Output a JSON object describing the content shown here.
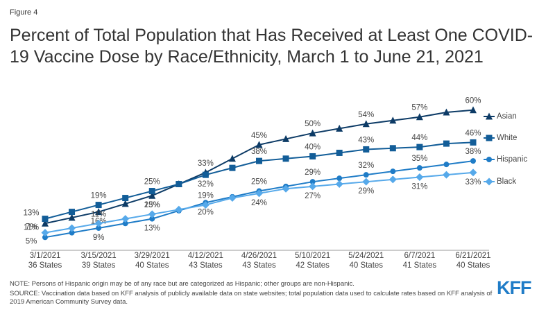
{
  "figure_label": "Figure 4",
  "chart_data": {
    "type": "line",
    "title": "Percent of Total Population that Has Received at Least One COVID-19 Vaccine Dose by Race/Ethnicity, March 1 to June 21, 2021",
    "categories": [
      "3/1/2021",
      null,
      "3/15/2021",
      null,
      "3/29/2021",
      null,
      "4/12/2021",
      null,
      "4/26/2021",
      null,
      "5/10/2021",
      null,
      "5/24/2021",
      null,
      "6/7/2021",
      null,
      "6/21/2021"
    ],
    "category_sublabels": [
      "36 States",
      null,
      "39 States",
      null,
      "40 States",
      null,
      "43 States",
      null,
      "43 States",
      null,
      "42 States",
      null,
      "40 States",
      null,
      "41 States",
      null,
      "40 States"
    ],
    "ylim": [
      0,
      65
    ],
    "series": [
      {
        "name": "Asian",
        "color": "#0d3b66",
        "marker": "triangle",
        "values": [
          11,
          13.5,
          16,
          19.5,
          23,
          28,
          33,
          39,
          45,
          47.5,
          50,
          52,
          54,
          55.5,
          57,
          59,
          60
        ],
        "value_labels": [
          "11%",
          null,
          "16%",
          null,
          "23%",
          null,
          "33%",
          null,
          "45%",
          null,
          "50%",
          null,
          "54%",
          null,
          "57%",
          null,
          "60%"
        ]
      },
      {
        "name": "White",
        "color": "#125d98",
        "marker": "square",
        "values": [
          13,
          16,
          19,
          22,
          25,
          28,
          32,
          35,
          38,
          39,
          40,
          41.5,
          43,
          43.5,
          44,
          45.5,
          46
        ],
        "value_labels": [
          "13%",
          null,
          "19%",
          null,
          "25%",
          null,
          "32%",
          null,
          "38%",
          null,
          "40%",
          null,
          "43%",
          null,
          "44%",
          null,
          "46%"
        ]
      },
      {
        "name": "Hispanic",
        "color": "#1f7cc7",
        "marker": "circle",
        "values": [
          5,
          7,
          9,
          11,
          13,
          16.5,
          20,
          22.5,
          25,
          27,
          29,
          30.5,
          32,
          33.5,
          35,
          36.5,
          38
        ],
        "value_labels": [
          "5%",
          null,
          "9%",
          null,
          "13%",
          null,
          "20%",
          null,
          "25%",
          null,
          "29%",
          null,
          "32%",
          null,
          "35%",
          null,
          "38%"
        ]
      },
      {
        "name": "Black",
        "color": "#56a9ea",
        "marker": "diamond",
        "values": [
          7,
          9,
          11,
          13,
          15,
          17,
          19,
          22,
          24,
          26,
          27,
          28,
          29,
          30,
          31,
          32,
          33
        ],
        "value_labels": [
          "7%",
          null,
          "11%",
          null,
          "15%",
          null,
          "19%",
          null,
          "24%",
          null,
          "27%",
          null,
          "29%",
          null,
          "31%",
          null,
          "33%"
        ]
      }
    ]
  },
  "notes": [
    "NOTE: Persons of Hispanic origin may be of any race but are categorized as Hispanic; other groups are non-Hispanic.",
    "SOURCE: Vaccination data based on KFF analysis of publicly available data on state websites; total population data used to calculate rates based on KFF analysis of 2019 American Community Survey data."
  ],
  "logo": "KFF"
}
